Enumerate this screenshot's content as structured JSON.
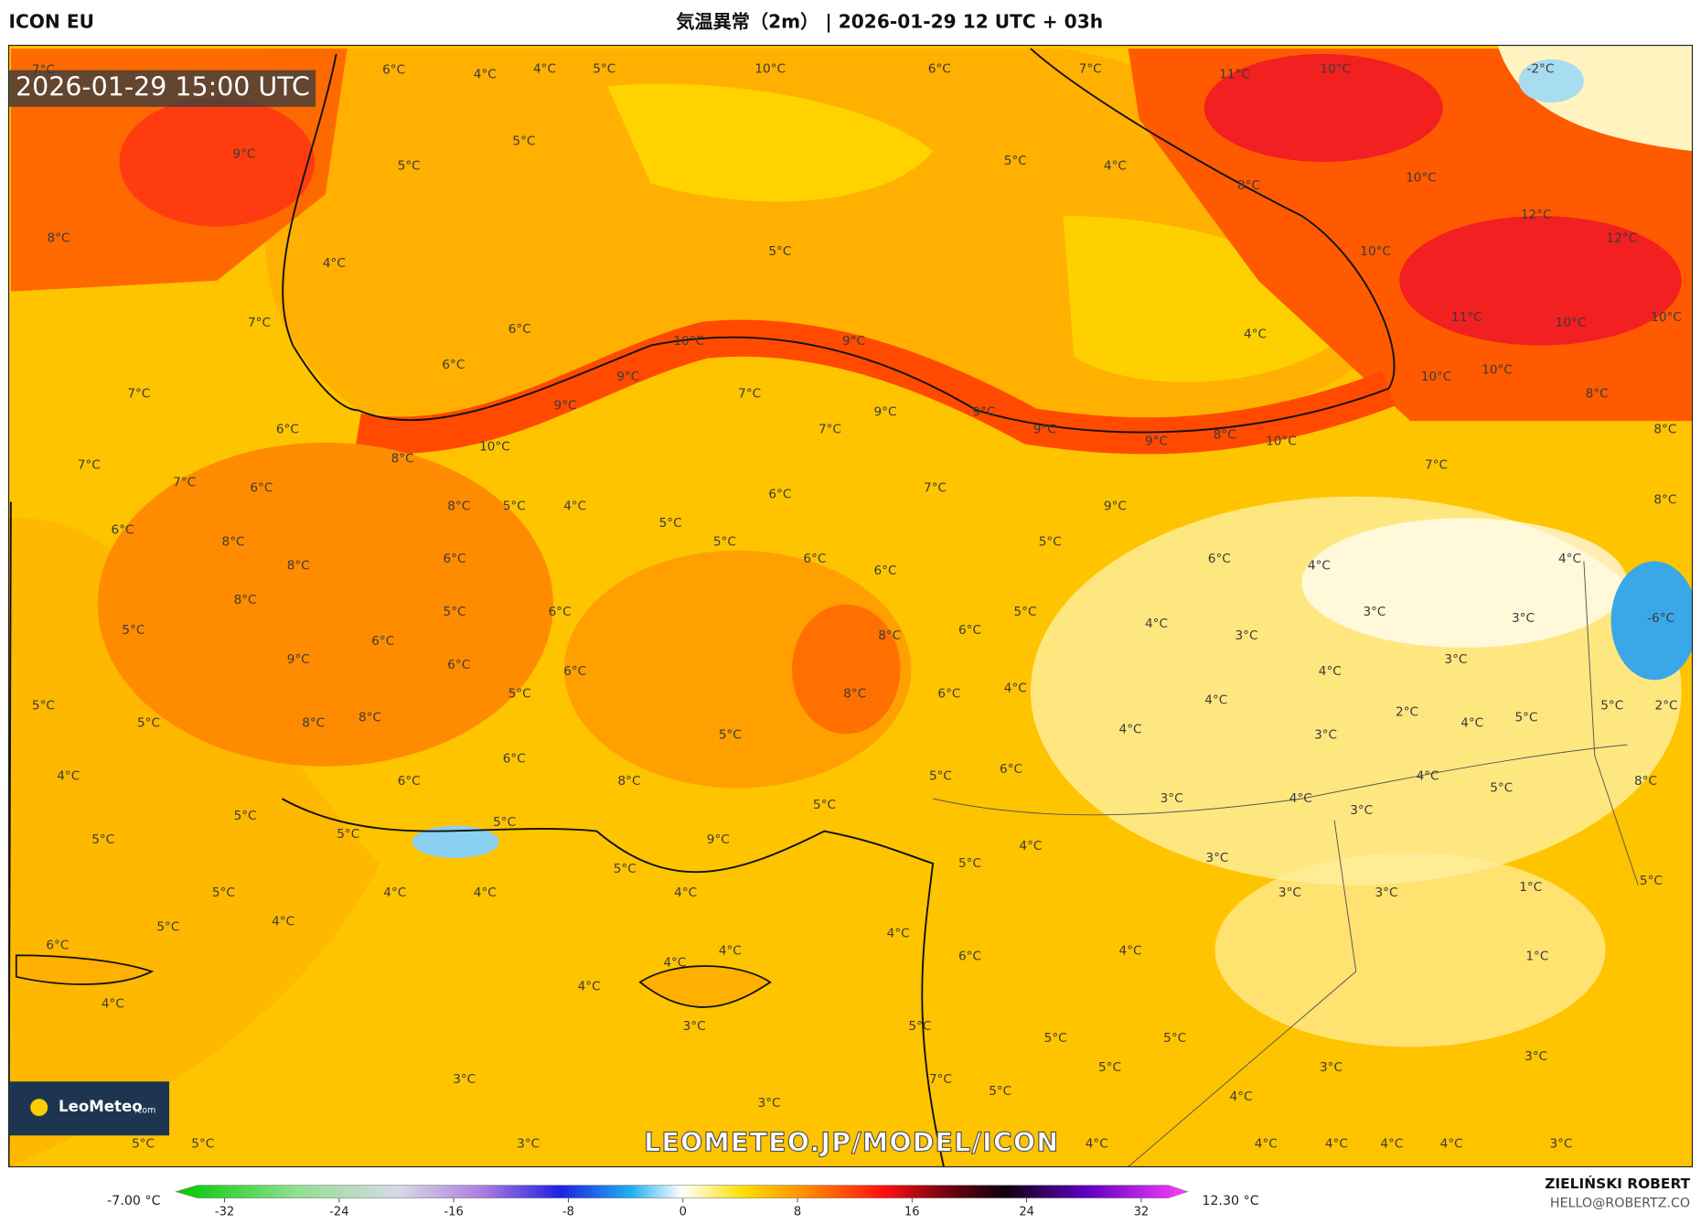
{
  "header": {
    "model": "ICON EU",
    "title": "気温異常（2m） | 2026-01-29 12 UTC + 03h"
  },
  "map": {
    "valid_time": "2026-01-29 15:00 UTC",
    "watermark": "LEOMETEO.JP/MODEL/ICON",
    "labels": [
      "7°C",
      "6°C",
      "4°C",
      "4°C",
      "5°C",
      "10°C",
      "6°C",
      "7°C",
      "11°C",
      "10°C",
      "-2°C",
      "9°C",
      "5°C",
      "5°C",
      "5°C",
      "4°C",
      "10°C",
      "8°C",
      "8°C",
      "12°C",
      "12°C",
      "5°C",
      "10°C",
      "4°C",
      "7°C",
      "6°C",
      "11°C",
      "10°C",
      "10°C",
      "4°C",
      "10°C",
      "9°C",
      "6°C",
      "9°C",
      "10°C",
      "10°C",
      "7°C",
      "7°C",
      "9°C",
      "9°C",
      "9°C",
      "8°C",
      "6°C",
      "7°C",
      "9°C",
      "9°C",
      "8°C",
      "10°C",
      "10°C",
      "8°C",
      "7°C",
      "8°C",
      "7°C",
      "6°C",
      "7°C",
      "7°C",
      "6°C",
      "9°C",
      "8°C",
      "8°C",
      "5°C",
      "4°C",
      "6°C",
      "5°C",
      "8°C",
      "5°C",
      "5°C",
      "6°C",
      "4°C",
      "4°C",
      "8°C",
      "6°C",
      "6°C",
      "6°C",
      "8°C",
      "5°C",
      "6°C",
      "5°C",
      "3°C",
      "-6°C",
      "5°C",
      "6°C",
      "4°C",
      "3°C",
      "3°C",
      "8°C",
      "6°C",
      "9°C",
      "3°C",
      "6°C",
      "6°C",
      "4°C",
      "5°C",
      "8°C",
      "6°C",
      "4°C",
      "4°C",
      "5°C",
      "2°C",
      "5°C",
      "8°C",
      "8°C",
      "2°C",
      "4°C",
      "5°C",
      "5°C",
      "5°C",
      "4°C",
      "3°C",
      "6°C",
      "4°C",
      "6°C",
      "8°C",
      "5°C",
      "6°C",
      "4°C",
      "5°C",
      "8°C",
      "3°C",
      "5°C",
      "4°C",
      "3°C",
      "5°C",
      "5°C",
      "5°C",
      "9°C",
      "5°C",
      "4°C",
      "3°C",
      "5°C",
      "5°C",
      "4°C",
      "4°C",
      "4°C",
      "5°C",
      "3°C",
      "3°C",
      "1°C",
      "5°C",
      "5°C",
      "4°C",
      "4°C",
      "6°C",
      "4°C",
      "4°C",
      "6°C",
      "1°C",
      "4°C",
      "4°C",
      "4°C",
      "3°C",
      "5°C",
      "5°C",
      "5°C",
      "7°C",
      "3°C",
      "5°C",
      "3°C",
      "3°C",
      "5°C",
      "4°C",
      "3°C",
      "5°C",
      "5°C",
      "3°C",
      "4°C",
      "4°C",
      "4°C",
      "4°C",
      "4°C",
      "3°C"
    ]
  },
  "colorbar": {
    "min_label": "-7.00 °C",
    "max_label": "12.30 °C",
    "range": [
      -32,
      32
    ],
    "ticks": [
      -32,
      -24,
      -16,
      -8,
      0,
      8,
      16,
      24,
      32
    ]
  },
  "logo": {
    "name": "LeoMeteo",
    "suffix": ".com"
  },
  "credit": {
    "author": "ZIELIŃSKI ROBERT",
    "email": "HELLO@ROBERTZ.CO"
  }
}
